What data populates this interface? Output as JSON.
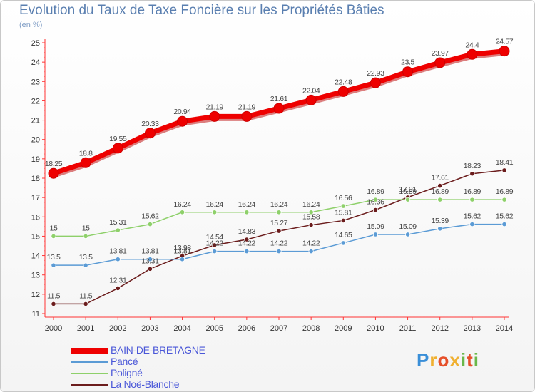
{
  "header": {
    "title": "Evolution du Taux de Taxe Foncière sur les Propriétés Bâties",
    "unit": "(en %)"
  },
  "logo": {
    "text": "Proxiti",
    "icon": "proxiti-logo"
  },
  "chart_data": {
    "type": "line",
    "title": "Evolution du Taux de Taxe Foncière sur les Propriétés Bâties",
    "ylabel": "(en %)",
    "xlabel": "",
    "categories": [
      "2000",
      "2001",
      "2002",
      "2003",
      "2004",
      "2005",
      "2006",
      "2007",
      "2008",
      "2009",
      "2010",
      "2011",
      "2012",
      "2013",
      "2014"
    ],
    "ylim": [
      11,
      25
    ],
    "yticks": [
      11,
      12,
      13,
      14,
      15,
      16,
      17,
      18,
      19,
      20,
      21,
      22,
      23,
      24,
      25
    ],
    "grid": false,
    "legend_position": "bottom-left",
    "series": [
      {
        "name": "BAIN-DE-BRETAGNE",
        "color": "#ee0000",
        "values": [
          18.25,
          18.8,
          19.55,
          20.33,
          20.94,
          21.19,
          21.19,
          21.61,
          22.04,
          22.48,
          22.93,
          23.5,
          23.97,
          24.4,
          24.57
        ],
        "labels": [
          "18.25",
          "18.8",
          "19.55",
          "20.33",
          "20.94",
          "21.19",
          "21.19",
          "21.61",
          "22.04",
          "22.48",
          "22.93",
          "23.5",
          "23.97",
          "24.4",
          "24.57"
        ]
      },
      {
        "name": "Pancé",
        "color": "#5b9bd5",
        "values": [
          13.5,
          13.5,
          13.81,
          13.81,
          13.81,
          14.22,
          14.22,
          14.22,
          14.22,
          14.65,
          15.09,
          15.09,
          15.39,
          15.62,
          15.62
        ],
        "labels": [
          "13.5",
          "13.5",
          "13.81",
          "13.81",
          "13.81",
          "14.22",
          "14.22",
          "14.22",
          "14.22",
          "14.65",
          "15.09",
          "15.09",
          "15.39",
          "15.62",
          "15.62"
        ]
      },
      {
        "name": "Poligné",
        "color": "#8ed06a",
        "values": [
          15,
          15,
          15.31,
          15.62,
          16.24,
          16.24,
          16.24,
          16.24,
          16.24,
          16.56,
          16.89,
          16.89,
          16.89,
          16.89,
          16.89
        ],
        "labels": [
          "15",
          "15",
          "15.31",
          "15.62",
          "16.24",
          "16.24",
          "16.24",
          "16.24",
          "16.24",
          "16.56",
          "16.89",
          "16.89",
          "16.89",
          "16.89",
          "16.89"
        ]
      },
      {
        "name": "La Noë-Blanche",
        "color": "#6b1c1c",
        "values": [
          11.5,
          11.5,
          12.31,
          13.31,
          13.98,
          14.54,
          14.83,
          15.27,
          15.58,
          15.81,
          16.36,
          17.01,
          17.61,
          18.23,
          18.41
        ],
        "labels": [
          "11.5",
          "11.5",
          "12.31",
          "13.31",
          "13.98",
          "14.54",
          "14.83",
          "15.27",
          "15.58",
          "15.81",
          "16.36",
          "17.01",
          "17.61",
          "18.23",
          "18.41"
        ]
      }
    ]
  }
}
